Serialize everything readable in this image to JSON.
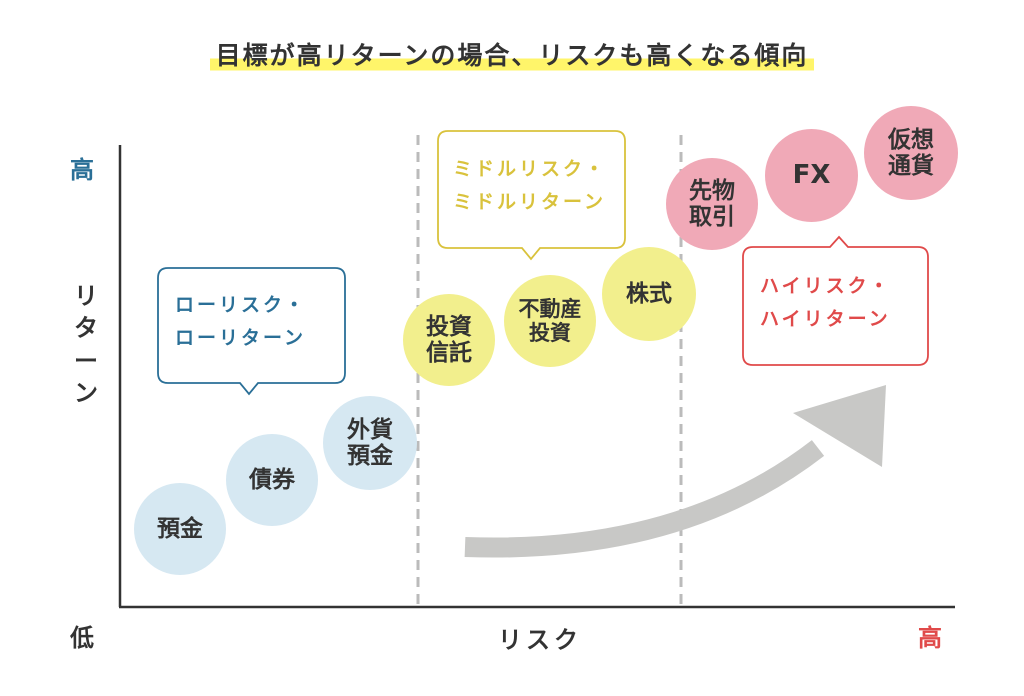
{
  "title": "目標が高リターンの場合、リスクも高くなる傾向",
  "axes": {
    "y_label": "リターン",
    "y_high": "高",
    "y_low": "低",
    "x_label": "リスク",
    "x_high": "高"
  },
  "colors": {
    "axis": "#333333",
    "blue_accent": "#2a6f97",
    "yellow_accent": "#d9c23c",
    "red_accent": "#e04a4a",
    "circle_blue": "#d6e8f2",
    "circle_yellow": "#f2ef8d",
    "circle_pink": "#f0a9b7",
    "arrow": "#c8c8c6",
    "divider": "#bbbbbb",
    "highlight": "#fff56a"
  },
  "bubbles": {
    "low": "ローリスク・\nローリターン",
    "middle": "ミドルリスク・\nミドルリターン",
    "high": "ハイリスク・\nハイリターン"
  },
  "products": {
    "deposit": "預金",
    "bond": "債券",
    "foreign_deposit": "外貨\n預金",
    "investment_trust": "投資\n信託",
    "real_estate": "不動産\n投資",
    "stock": "株式",
    "futures": "先物\n取引",
    "fx": "FX",
    "crypto": "仮想\n通貨"
  },
  "icons": {
    "trend_arrow": "curved-arrow-icon"
  }
}
